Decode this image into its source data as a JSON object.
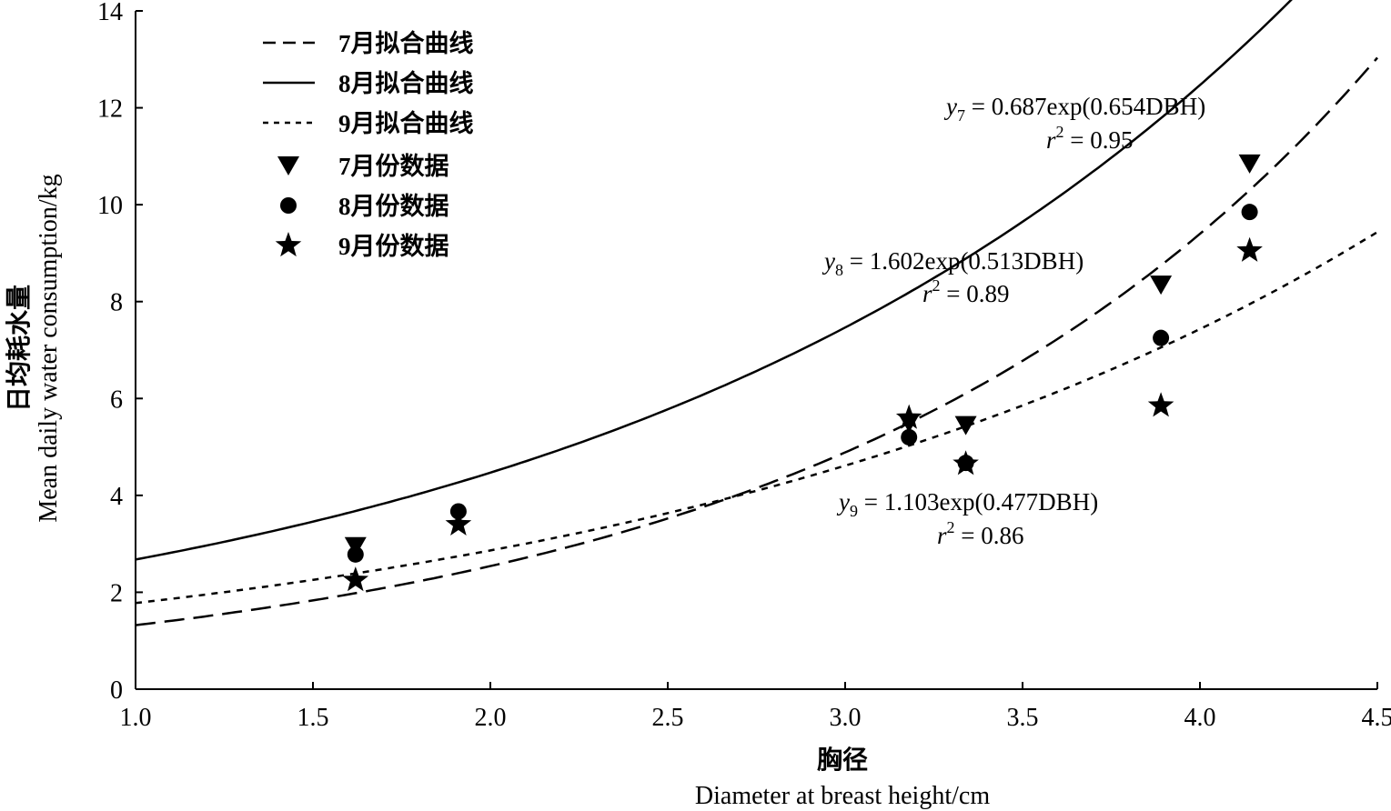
{
  "chart_data": {
    "type": "scatter",
    "xlabel_cn": "胸径",
    "xlabel_en": "Diameter at breast height/cm",
    "ylabel_cn": "日均耗水量",
    "ylabel_en": "Mean daily water consumption/kg",
    "xlim": [
      1.0,
      4.5
    ],
    "ylim": [
      0,
      14
    ],
    "xticks": [
      "1.0",
      "1.5",
      "2.0",
      "2.5",
      "3.0",
      "3.5",
      "4.0",
      "4.5"
    ],
    "yticks": [
      "0",
      "2",
      "4",
      "6",
      "8",
      "10",
      "12",
      "14"
    ],
    "legend_position": "top-left",
    "fits": [
      {
        "name": "7月拟合曲线",
        "a": 0.687,
        "b": 0.654,
        "style": "dashed",
        "equation": "= 0.687exp(0.654DBH)",
        "r2": "= 0.95",
        "sub": "7"
      },
      {
        "name": "8月拟合曲线",
        "a": 1.602,
        "b": 0.513,
        "style": "solid",
        "equation": "= 1.602exp(0.513DBH)",
        "r2": "= 0.89",
        "sub": "8"
      },
      {
        "name": "9月拟合曲线",
        "a": 1.103,
        "b": 0.477,
        "style": "dotted",
        "equation": "= 1.103exp(0.477DBH)",
        "r2": "= 0.86",
        "sub": "9"
      }
    ],
    "series": [
      {
        "name": "7月份数据",
        "marker": "triangle-down",
        "points": [
          [
            1.62,
            2.95
          ],
          [
            3.18,
            5.5
          ],
          [
            3.34,
            5.45
          ],
          [
            3.89,
            8.35
          ],
          [
            4.14,
            10.85
          ]
        ]
      },
      {
        "name": "8月份数据",
        "marker": "circle",
        "points": [
          [
            1.62,
            2.78
          ],
          [
            1.91,
            3.67
          ],
          [
            3.18,
            5.2
          ],
          [
            3.34,
            4.67
          ],
          [
            3.89,
            7.25
          ],
          [
            4.14,
            9.85
          ]
        ]
      },
      {
        "name": "9月份数据",
        "marker": "star",
        "points": [
          [
            1.62,
            2.25
          ],
          [
            1.91,
            3.4
          ],
          [
            3.18,
            5.6
          ],
          [
            3.34,
            4.65
          ],
          [
            3.89,
            5.85
          ],
          [
            4.14,
            9.05
          ]
        ]
      }
    ]
  }
}
